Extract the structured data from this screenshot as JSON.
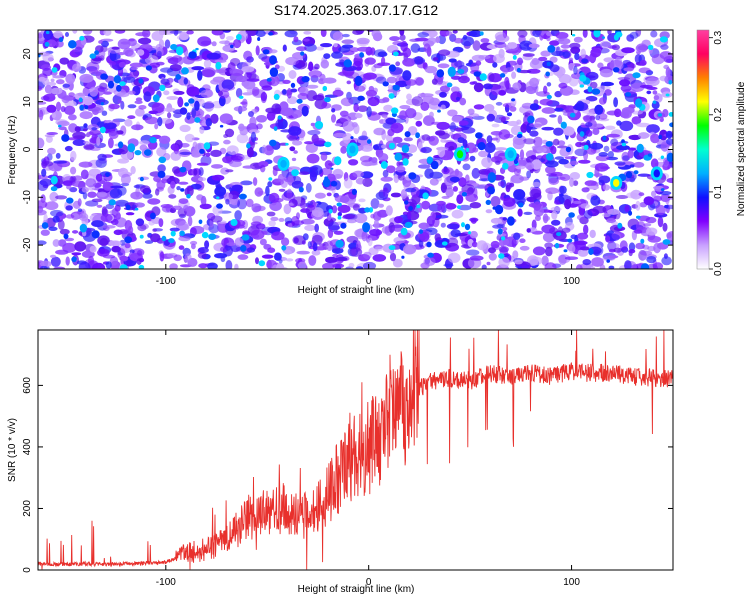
{
  "title": "S174.2025.363.07.17.G12",
  "chart_data": [
    {
      "type": "heatmap",
      "xlabel": "Height of straight line (km)",
      "ylabel": "Frequency (Hz)",
      "xlim": [
        -163,
        150
      ],
      "ylim": [
        -25,
        25
      ],
      "xticks": [
        -100,
        0,
        100
      ],
      "yticks": [
        -20,
        -10,
        0,
        10,
        20
      ],
      "colorbar": {
        "label": "Normalized spectral amplitude",
        "range": [
          0,
          0.31
        ],
        "ticks": [
          "0.0",
          "0.1",
          "0.2",
          "0.3"
        ],
        "tick_values": [
          0,
          0.1,
          0.2,
          0.3
        ],
        "colors": [
          "#ffffff",
          "#c8a0ff",
          "#8000ff",
          "#1010ff",
          "#00b0ff",
          "#00ffd0",
          "#00ff00",
          "#ffff00",
          "#ff8000",
          "#ff0060",
          "#ff40a0"
        ]
      },
      "hotspots": [
        {
          "x": 45,
          "y": -1,
          "value": 0.2
        },
        {
          "x": 122,
          "y": -7,
          "value": 0.22
        },
        {
          "x": 70,
          "y": -1,
          "value": 0.12
        },
        {
          "x": -8,
          "y": 0,
          "value": 0.13
        },
        {
          "x": -42,
          "y": -3,
          "value": 0.11
        },
        {
          "x": 142,
          "y": -5,
          "value": 0.1
        }
      ]
    },
    {
      "type": "line",
      "xlabel": "Height of straight line (km)",
      "ylabel": "SNR (10 * v/v)",
      "xlim": [
        -163,
        150
      ],
      "ylim": [
        0,
        780
      ],
      "xticks": [
        -100,
        0,
        100
      ],
      "yticks": [
        0,
        200,
        400,
        600
      ],
      "series": [
        {
          "name": "SNR",
          "color": "#e8302c",
          "x": [
            -163,
            -150,
            -140,
            -130,
            -120,
            -110,
            -100,
            -95,
            -90,
            -85,
            -80,
            -75,
            -70,
            -65,
            -60,
            -55,
            -50,
            -45,
            -40,
            -35,
            -30,
            -25,
            -20,
            -15,
            -10,
            -5,
            0,
            5,
            10,
            15,
            20,
            25,
            30,
            40,
            50,
            60,
            70,
            80,
            90,
            100,
            110,
            120,
            130,
            140,
            150
          ],
          "values": [
            20,
            18,
            20,
            18,
            20,
            22,
            25,
            40,
            55,
            60,
            70,
            80,
            100,
            130,
            170,
            170,
            190,
            200,
            200,
            190,
            170,
            200,
            250,
            300,
            350,
            380,
            400,
            420,
            480,
            520,
            560,
            590,
            610,
            625,
            615,
            640,
            630,
            640,
            630,
            645,
            640,
            640,
            630,
            625,
            620
          ]
        }
      ]
    }
  ]
}
